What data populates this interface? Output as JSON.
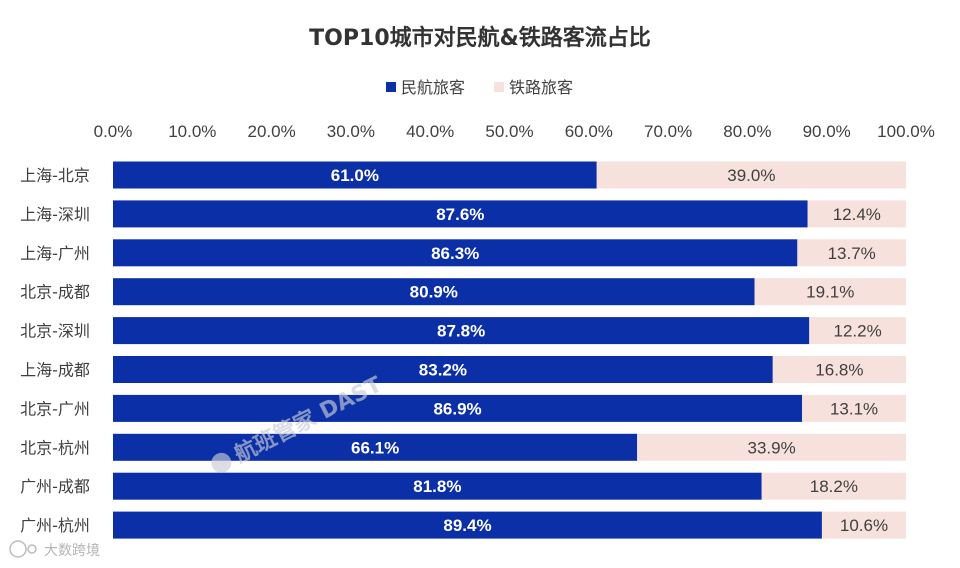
{
  "chart_data": {
    "type": "bar",
    "orientation": "horizontal",
    "stacked": true,
    "title": "TOP10城市对民航&铁路客流占比",
    "categories": [
      "上海-北京",
      "上海-深圳",
      "上海-广州",
      "北京-成都",
      "北京-深圳",
      "上海-成都",
      "北京-广州",
      "北京-杭州",
      "广州-成都",
      "广州-杭州"
    ],
    "series": [
      {
        "name": "民航旅客",
        "color": "#0b2fa6",
        "values": [
          61.0,
          87.6,
          86.3,
          80.9,
          87.8,
          83.2,
          86.9,
          66.1,
          81.8,
          89.4
        ]
      },
      {
        "name": "铁路旅客",
        "color": "#f7e1dc",
        "values": [
          39.0,
          12.4,
          13.7,
          19.1,
          12.2,
          16.8,
          13.1,
          33.9,
          18.2,
          10.6
        ]
      }
    ],
    "value_labels": [
      [
        "61.0%",
        "87.6%",
        "86.3%",
        "80.9%",
        "87.8%",
        "83.2%",
        "86.9%",
        "66.1%",
        "81.8%",
        "89.4%"
      ],
      [
        "39.0%",
        "12.4%",
        "13.7%",
        "19.1%",
        "12.2%",
        "16.8%",
        "13.1%",
        "33.9%",
        "18.2%",
        "10.6%"
      ]
    ],
    "x_axis": {
      "position": "top",
      "range": [
        0,
        100
      ],
      "ticks": [
        0,
        10,
        20,
        30,
        40,
        50,
        60,
        70,
        80,
        90,
        100
      ],
      "tick_labels": [
        "0.0%",
        "10.0%",
        "20.0%",
        "30.0%",
        "40.0%",
        "50.0%",
        "60.0%",
        "70.0%",
        "80.0%",
        "90.0%",
        "100.0%"
      ]
    },
    "legend": {
      "placement": "top-center"
    },
    "grid": false
  },
  "watermark": {
    "text": "航班管家 DAST"
  },
  "corner_logo": {
    "text": "大数跨境"
  }
}
